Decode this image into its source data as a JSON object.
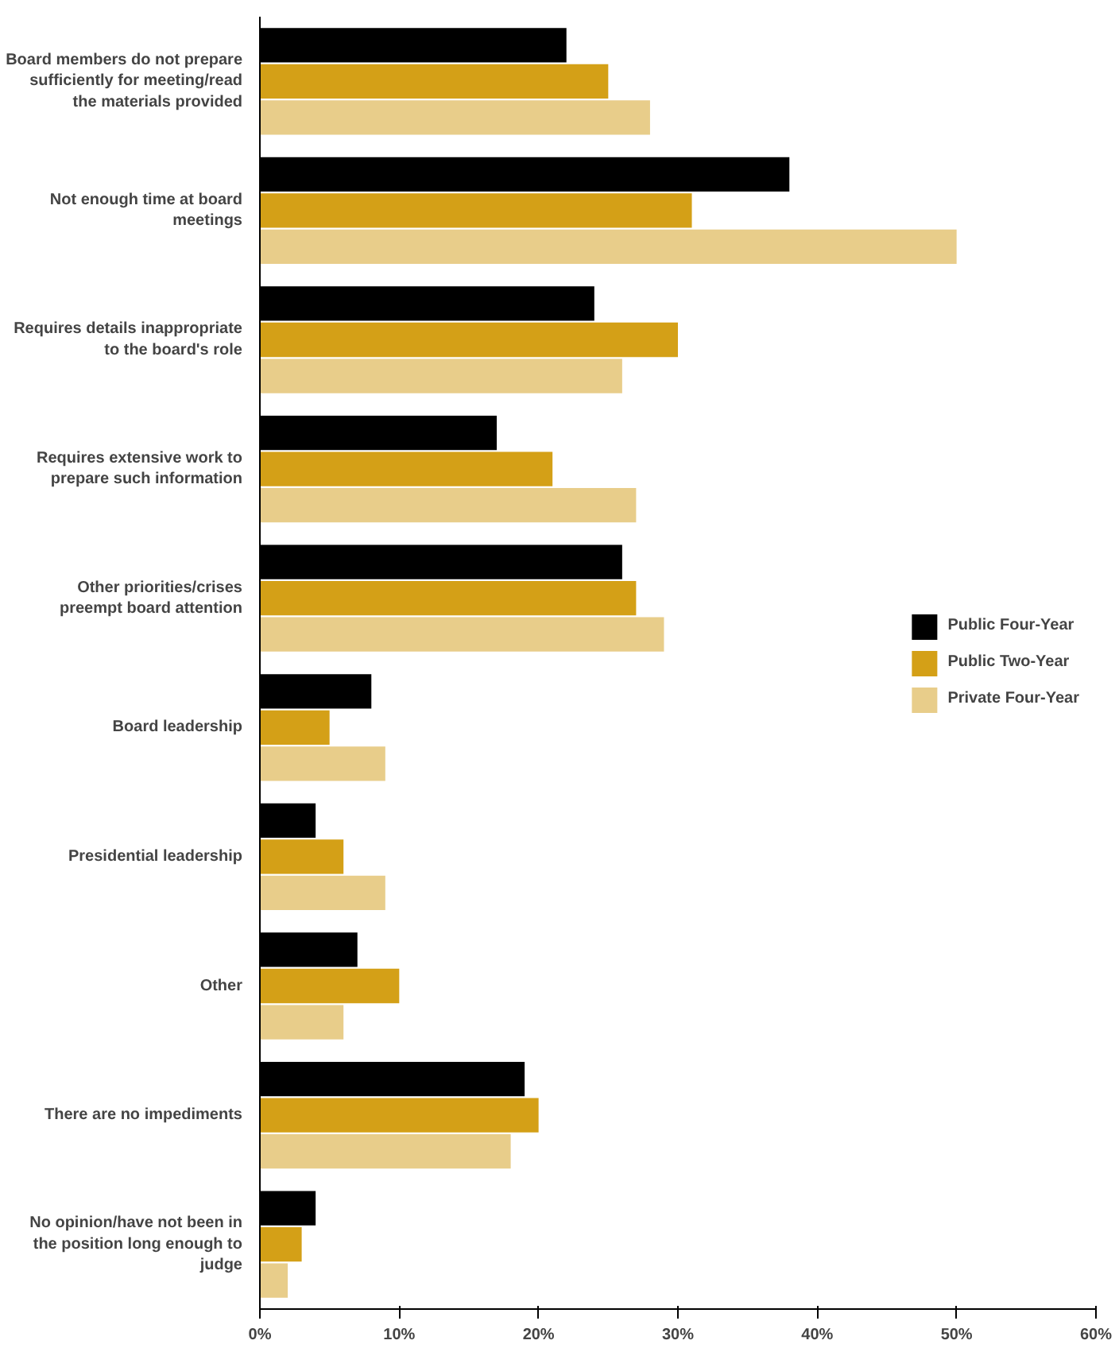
{
  "chart_data": {
    "type": "bar",
    "orientation": "horizontal",
    "categories": [
      "Board members do not prepare sufficiently for meeting/read the materials provided",
      "Not enough time at board meetings",
      "Requires details inappropriate to the board's role",
      "Requires extensive work to prepare such information",
      "Other priorities/crises preempt board attention",
      "Board leadership",
      "Presidential leadership",
      "Other",
      "There are no impediments",
      "No opinion/have not been in the position long enough to judge"
    ],
    "series": [
      {
        "name": "Public Four-Year",
        "color": "#000000",
        "values": [
          22,
          38,
          24,
          17,
          26,
          8,
          4,
          7,
          19,
          4
        ]
      },
      {
        "name": "Public Two-Year",
        "color": "#d4a017",
        "values": [
          25,
          31,
          30,
          21,
          27,
          5,
          6,
          10,
          20,
          3
        ]
      },
      {
        "name": "Private Four-Year",
        "color": "#e8cd8a",
        "values": [
          28,
          50,
          26,
          27,
          29,
          9,
          9,
          6,
          18,
          2
        ]
      }
    ],
    "xlim": [
      0,
      60
    ],
    "xticks": [
      {
        "value": 0,
        "label": "0%"
      },
      {
        "value": 10,
        "label": "10%"
      },
      {
        "value": 20,
        "label": "20%"
      },
      {
        "value": 30,
        "label": "30%"
      },
      {
        "value": 40,
        "label": "40%"
      },
      {
        "value": 50,
        "label": "50%"
      },
      {
        "value": 60,
        "label": "60%"
      }
    ],
    "grid": false,
    "legend": "right"
  }
}
